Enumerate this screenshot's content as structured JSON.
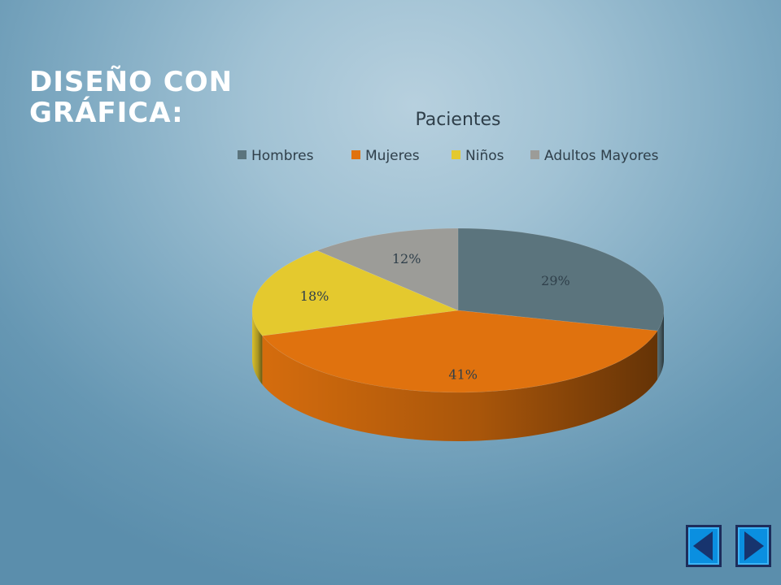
{
  "slide": {
    "title": "DISEÑO CON\nGRÁFICA:"
  },
  "chart_data": {
    "type": "pie",
    "style": "3d",
    "title": "Pacientes",
    "legend_position": "top",
    "categories": [
      "Hombres",
      "Mujeres",
      "Niños",
      "Adultos Mayores"
    ],
    "values": [
      29,
      41,
      18,
      12
    ],
    "labels": [
      "29%",
      "41%",
      "18%",
      "12%"
    ],
    "colors": [
      "#5b747d",
      "#e0720e",
      "#e4c92e",
      "#9c9c98"
    ]
  },
  "navigation": {
    "prev_icon": "left-triangle-icon",
    "next_icon": "right-triangle-icon"
  }
}
